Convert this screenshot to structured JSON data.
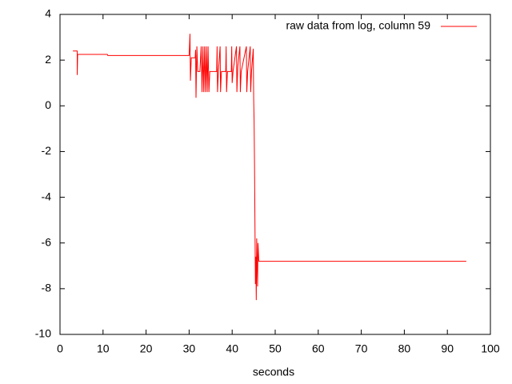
{
  "chart_data": {
    "type": "line",
    "xlabel": "seconds",
    "legend": "top-right",
    "xlim": [
      0,
      100
    ],
    "ylim": [
      -10,
      4
    ],
    "xticks": [
      0,
      10,
      20,
      30,
      40,
      50,
      60,
      70,
      80,
      90,
      100
    ],
    "yticks": [
      -10,
      -8,
      -6,
      -4,
      -2,
      0,
      2,
      4
    ],
    "series": [
      {
        "name": "raw data from log, column 59",
        "color": "#ff0000",
        "x": [
          3,
          4,
          4,
          4.1,
          11,
          11.1,
          30,
          30.2,
          30.3,
          30.5,
          31.4,
          31.5,
          31.6,
          31.8,
          32,
          32.5,
          32.8,
          33,
          33.2,
          33.4,
          33.6,
          33.8,
          34,
          34.2,
          34.4,
          34.6,
          34.8,
          36.4,
          36.5,
          36.6,
          36.8,
          37.2,
          37.3,
          37.5,
          38.5,
          38.6,
          38.7,
          38.9,
          39.8,
          39.9,
          40,
          40.2,
          41,
          41.1,
          41.3,
          41.8,
          41.9,
          42.1,
          43.3,
          43.4,
          43.6,
          44.2,
          44.3,
          44.5,
          44.9,
          45,
          45.1,
          45.2,
          45.4,
          45.5,
          45.6,
          45.7,
          45.9,
          46,
          46.2,
          94.4
        ],
        "values": [
          2.4,
          2.4,
          1.35,
          2.25,
          2.25,
          2.2,
          2.2,
          3.15,
          1.1,
          2.1,
          2.1,
          2.45,
          0.35,
          2.6,
          1.5,
          1.5,
          2.6,
          0.6,
          2.6,
          0.6,
          2.6,
          0.6,
          2.6,
          0.6,
          2.6,
          0.6,
          1.5,
          1.5,
          2.6,
          0.6,
          1.5,
          2.6,
          0.6,
          1.5,
          1.5,
          2.6,
          0.6,
          1.5,
          1.5,
          2.6,
          1.0,
          1.5,
          2.6,
          0.6,
          1.7,
          2.6,
          0.6,
          1.5,
          2.6,
          0.6,
          1.5,
          2.6,
          0.6,
          1.5,
          2.5,
          0.3,
          -0.7,
          -2.7,
          -7.8,
          -6.6,
          -8.5,
          -5.8,
          -7.9,
          -6,
          -6.8,
          -6.8
        ]
      }
    ]
  }
}
